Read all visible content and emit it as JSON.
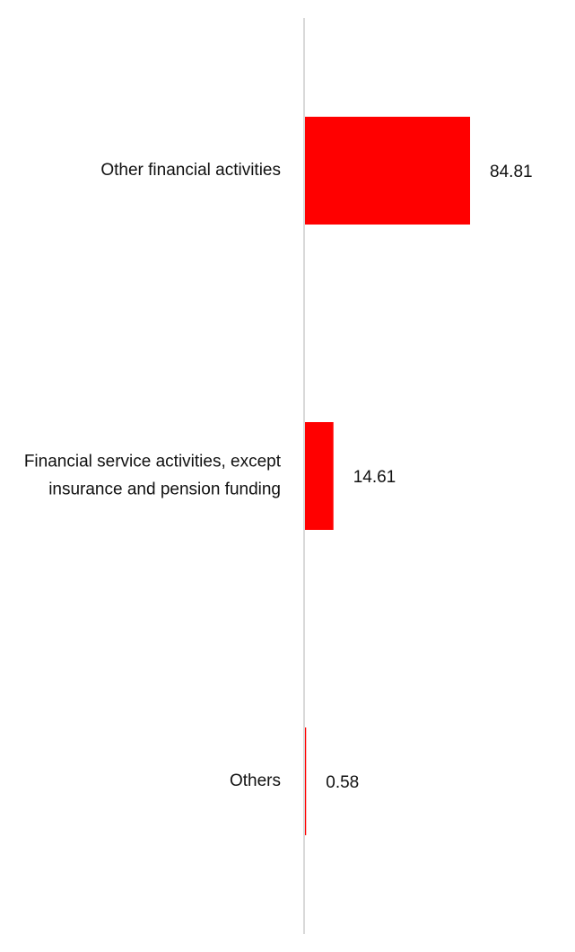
{
  "chart_data": {
    "type": "bar",
    "orientation": "horizontal",
    "categories": [
      "Other financial activities",
      "Financial service activities, except insurance and pension funding",
      "Others"
    ],
    "values": [
      84.81,
      14.61,
      0.58
    ],
    "value_labels": [
      "84.81",
      "14.61",
      "0.58"
    ],
    "title": "",
    "xlabel": "",
    "ylabel": "",
    "xlim": [
      0,
      100
    ],
    "grid": false,
    "legend": "none",
    "bar_color": "#ff0000",
    "axis_color": "#d9d9d9"
  }
}
